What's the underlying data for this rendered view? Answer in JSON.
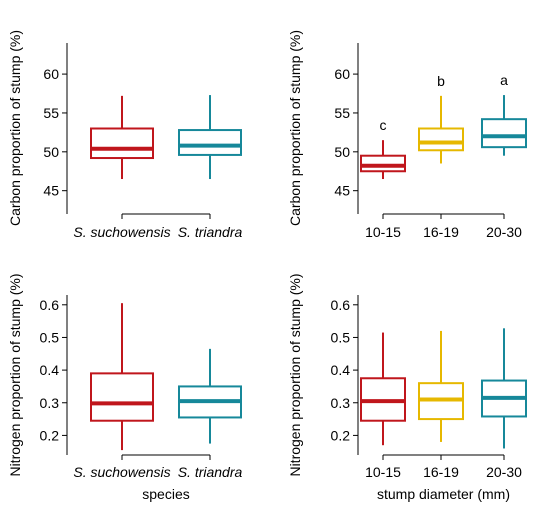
{
  "chart_data": [
    {
      "type": "box",
      "xlabel": "",
      "ylabel": "Carbon proportion of stump (%)",
      "ylim": [
        42,
        64
      ],
      "yticks": [
        45,
        50,
        55,
        60
      ],
      "yticklabels": [
        "45",
        "50",
        "55",
        "60"
      ],
      "categories": [
        "S. suchowensis",
        "S. triandra"
      ],
      "italic_categories": true,
      "boxes": [
        {
          "whislo": 46.5,
          "q1": 49.2,
          "med": 50.4,
          "q3": 53.0,
          "whishi": 57.2,
          "color": "#c0161c"
        },
        {
          "whislo": 46.5,
          "q1": 49.6,
          "med": 50.8,
          "q3": 52.8,
          "whishi": 57.3,
          "color": "#16889a"
        }
      ],
      "letters": []
    },
    {
      "type": "box",
      "xlabel": "",
      "ylabel": "Carbon proportion of stump (%)",
      "ylim": [
        42,
        64
      ],
      "yticks": [
        45,
        50,
        55,
        60
      ],
      "yticklabels": [
        "45",
        "50",
        "55",
        "60"
      ],
      "categories": [
        "10-15",
        "16-19",
        "20-30"
      ],
      "italic_categories": false,
      "boxes": [
        {
          "whislo": 46.5,
          "q1": 47.5,
          "med": 48.2,
          "q3": 49.5,
          "whishi": 51.5,
          "color": "#c0161c"
        },
        {
          "whislo": 48.5,
          "q1": 50.2,
          "med": 51.2,
          "q3": 53.0,
          "whishi": 57.2,
          "color": "#e6b800"
        },
        {
          "whislo": 49.5,
          "q1": 50.6,
          "med": 52.0,
          "q3": 54.2,
          "whishi": 57.3,
          "color": "#16889a"
        }
      ],
      "letters": [
        "c",
        "b",
        "a"
      ]
    },
    {
      "type": "box",
      "xlabel": "species",
      "ylabel": "Nitrogen proportion of stump (%)",
      "ylim": [
        0.14,
        0.63
      ],
      "yticks": [
        0.2,
        0.3,
        0.4,
        0.5,
        0.6
      ],
      "yticklabels": [
        "0.2",
        "0.3",
        "0.4",
        "0.5",
        "0.6"
      ],
      "categories": [
        "S. suchowensis",
        "S. triandra"
      ],
      "italic_categories": true,
      "boxes": [
        {
          "whislo": 0.155,
          "q1": 0.245,
          "med": 0.298,
          "q3": 0.39,
          "whishi": 0.605,
          "color": "#c0161c"
        },
        {
          "whislo": 0.175,
          "q1": 0.255,
          "med": 0.305,
          "q3": 0.35,
          "whishi": 0.465,
          "color": "#16889a"
        }
      ],
      "letters": []
    },
    {
      "type": "box",
      "xlabel": "stump diameter (mm)",
      "ylabel": "Nitrogen proportion of stump (%)",
      "ylim": [
        0.14,
        0.63
      ],
      "yticks": [
        0.2,
        0.3,
        0.4,
        0.5,
        0.6
      ],
      "yticklabels": [
        "0.2",
        "0.3",
        "0.4",
        "0.5",
        "0.6"
      ],
      "categories": [
        "10-15",
        "16-19",
        "20-30"
      ],
      "italic_categories": false,
      "boxes": [
        {
          "whislo": 0.17,
          "q1": 0.245,
          "med": 0.305,
          "q3": 0.375,
          "whishi": 0.515,
          "color": "#c0161c"
        },
        {
          "whislo": 0.18,
          "q1": 0.25,
          "med": 0.31,
          "q3": 0.36,
          "whishi": 0.52,
          "color": "#e6b800"
        },
        {
          "whislo": 0.16,
          "q1": 0.258,
          "med": 0.315,
          "q3": 0.368,
          "whishi": 0.528,
          "color": "#16889a"
        }
      ],
      "letters": []
    }
  ]
}
